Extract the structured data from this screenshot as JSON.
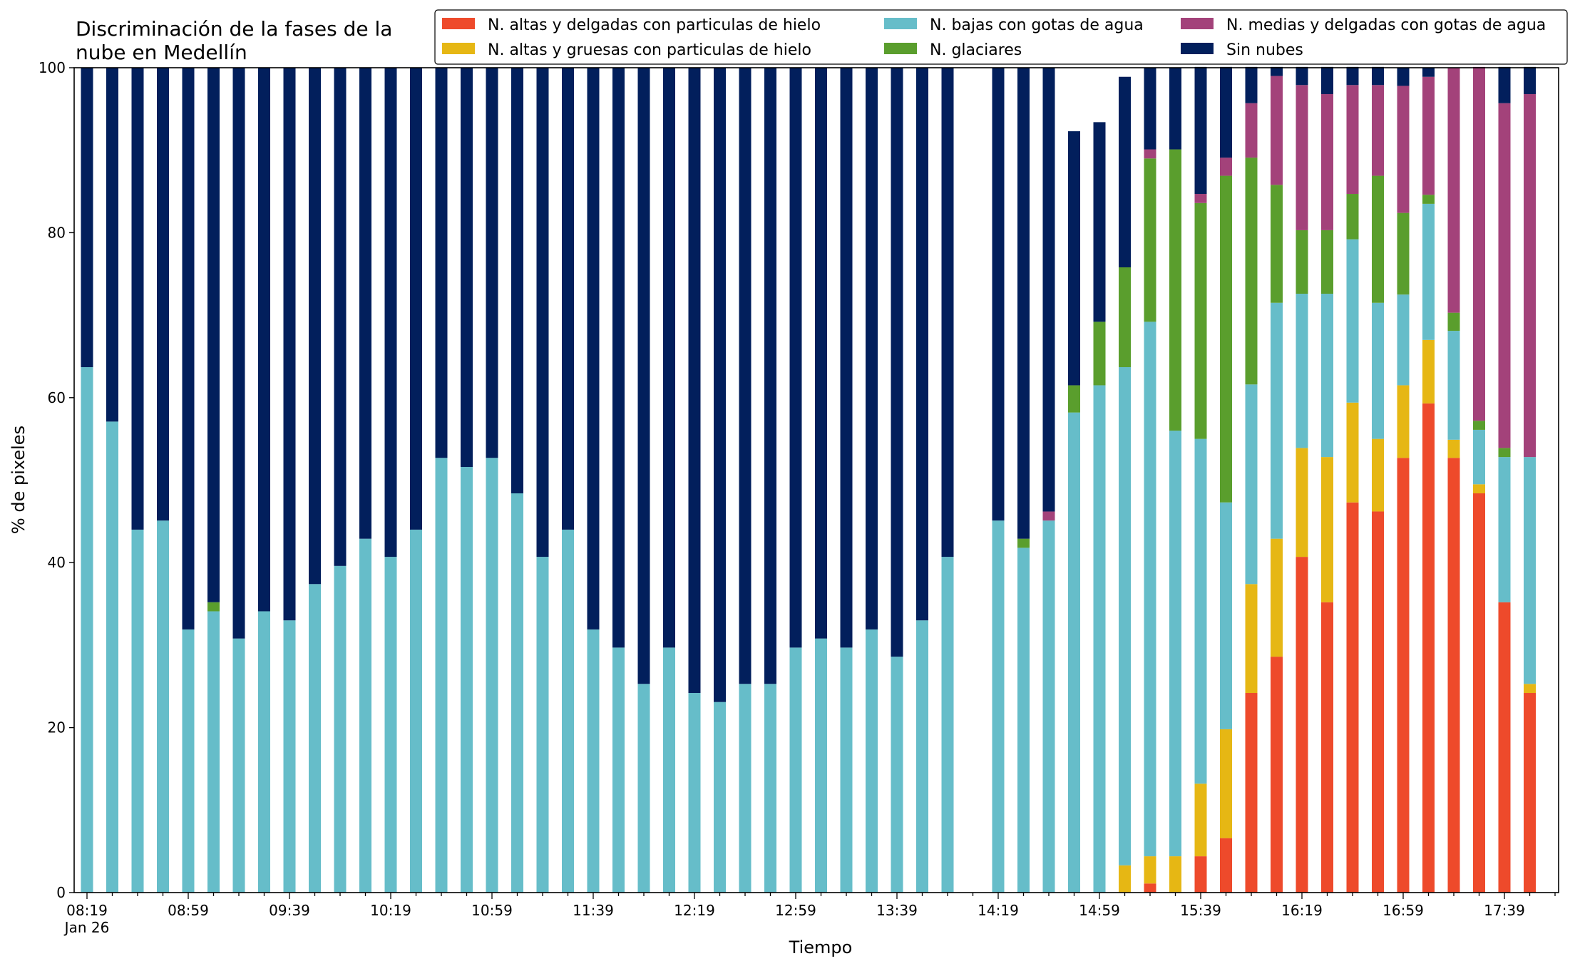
{
  "chart_data": {
    "type": "bar",
    "stacked": true,
    "title_lines": [
      "Discriminación de la fases de la",
      "nube en Medellín"
    ],
    "xlabel": "Tiempo",
    "ylabel": "% de pixeles",
    "ylim": [
      0,
      100
    ],
    "y_ticks": [
      "0",
      "20",
      "40",
      "60",
      "80",
      "100"
    ],
    "x_tick_labels": [
      {
        "index": 0,
        "label": "08:19",
        "sublabel": "Jan 26"
      },
      {
        "index": 4,
        "label": "08:59"
      },
      {
        "index": 8,
        "label": "09:39"
      },
      {
        "index": 12,
        "label": "10:19"
      },
      {
        "index": 16,
        "label": "10:59"
      },
      {
        "index": 20,
        "label": "11:39"
      },
      {
        "index": 24,
        "label": "12:19"
      },
      {
        "index": 28,
        "label": "12:59"
      },
      {
        "index": 32,
        "label": "13:39"
      },
      {
        "index": 36,
        "label": "14:19"
      },
      {
        "index": 40,
        "label": "14:59"
      },
      {
        "index": 44,
        "label": "15:39"
      },
      {
        "index": 48,
        "label": "16:19"
      },
      {
        "index": 52,
        "label": "16:59"
      },
      {
        "index": 56,
        "label": "17:39"
      }
    ],
    "legend_placement": "top",
    "grid": false,
    "series": [
      {
        "name": "N. altas y delgadas con particulas de hielo",
        "color": "#ee4a2b",
        "values": [
          0,
          0,
          0,
          0,
          0,
          0,
          0,
          0,
          0,
          0,
          0,
          0,
          0,
          0,
          0,
          0,
          0,
          0,
          0,
          0,
          0,
          0,
          0,
          0,
          0,
          0,
          0,
          0,
          0,
          0,
          0,
          0,
          0,
          0,
          0,
          0,
          0,
          0,
          0,
          0,
          0,
          0,
          1.1,
          0,
          4.4,
          6.6,
          24.2,
          28.6,
          40.7,
          35.2,
          47.3,
          46.2,
          52.7,
          59.3,
          52.7,
          48.4,
          35.2,
          24.2
        ]
      },
      {
        "name": "N. altas y gruesas con particulas de hielo",
        "color": "#e6b714",
        "values": [
          0,
          0,
          0,
          0,
          0,
          0,
          0,
          0,
          0,
          0,
          0,
          0,
          0,
          0,
          0,
          0,
          0,
          0,
          0,
          0,
          0,
          0,
          0,
          0,
          0,
          0,
          0,
          0,
          0,
          0,
          0,
          0,
          0,
          0,
          0,
          0,
          0,
          0,
          0,
          0,
          0,
          3.3,
          3.3,
          4.4,
          8.8,
          13.2,
          13.2,
          14.3,
          13.2,
          17.6,
          12.1,
          8.8,
          8.8,
          7.7,
          2.2,
          1.1,
          0,
          1.1
        ]
      },
      {
        "name": "N. bajas con gotas de agua",
        "color": "#66bdc9",
        "values": [
          63.7,
          57.1,
          44.0,
          45.1,
          31.9,
          34.1,
          30.8,
          34.1,
          33.0,
          37.4,
          39.6,
          42.9,
          40.7,
          44.0,
          52.7,
          51.6,
          52.7,
          48.4,
          40.7,
          44.0,
          31.9,
          29.7,
          25.3,
          29.7,
          24.2,
          23.1,
          25.3,
          25.3,
          29.7,
          30.8,
          29.7,
          31.9,
          28.6,
          33.0,
          40.7,
          0,
          45.1,
          41.8,
          45.1,
          58.2,
          61.5,
          60.4,
          64.8,
          51.6,
          41.8,
          27.5,
          24.2,
          28.6,
          18.7,
          19.8,
          19.8,
          16.5,
          11.0,
          16.5,
          13.2,
          6.6,
          17.6,
          27.5
        ]
      },
      {
        "name": "N. glaciares",
        "color": "#5a9e2d",
        "values": [
          0,
          0,
          0,
          0,
          0,
          1.1,
          0,
          0,
          0,
          0,
          0,
          0,
          0,
          0,
          0,
          0,
          0,
          0,
          0,
          0,
          0,
          0,
          0,
          0,
          0,
          0,
          0,
          0,
          0,
          0,
          0,
          0,
          0,
          0,
          0,
          0,
          0,
          1.1,
          0,
          3.3,
          7.7,
          12.1,
          19.8,
          34.1,
          28.6,
          39.6,
          27.5,
          14.3,
          7.7,
          7.7,
          5.5,
          15.4,
          9.9,
          1.1,
          2.2,
          1.1,
          1.1,
          0
        ]
      },
      {
        "name": "N. medias y delgadas con gotas de agua",
        "color": "#a3427a",
        "values": [
          0,
          0,
          0,
          0,
          0,
          0,
          0,
          0,
          0,
          0,
          0,
          0,
          0,
          0,
          0,
          0,
          0,
          0,
          0,
          0,
          0,
          0,
          0,
          0,
          0,
          0,
          0,
          0,
          0,
          0,
          0,
          0,
          0,
          0,
          0,
          0,
          0,
          0,
          1.1,
          0,
          0,
          0,
          1.1,
          0,
          1.1,
          2.2,
          6.6,
          13.2,
          17.6,
          16.5,
          13.2,
          11.0,
          15.4,
          14.3,
          29.7,
          42.9,
          41.8,
          44.0
        ]
      },
      {
        "name": "Sin nubes",
        "color": "#021f5c",
        "values": [
          36.3,
          42.9,
          56.0,
          54.9,
          68.1,
          64.8,
          69.2,
          65.9,
          67.0,
          62.6,
          60.4,
          57.1,
          59.3,
          56.0,
          47.3,
          48.4,
          47.3,
          51.6,
          59.3,
          56.0,
          68.1,
          70.3,
          74.7,
          70.3,
          75.8,
          76.9,
          74.7,
          74.7,
          70.3,
          69.2,
          70.3,
          68.1,
          71.4,
          67.0,
          59.3,
          0,
          54.9,
          57.1,
          53.8,
          30.8,
          24.2,
          23.1,
          9.9,
          9.9,
          15.4,
          11.0,
          4.4,
          1.1,
          2.2,
          3.3,
          2.2,
          2.2,
          2.2,
          1.1,
          0,
          0,
          4.4,
          3.3
        ]
      }
    ]
  }
}
